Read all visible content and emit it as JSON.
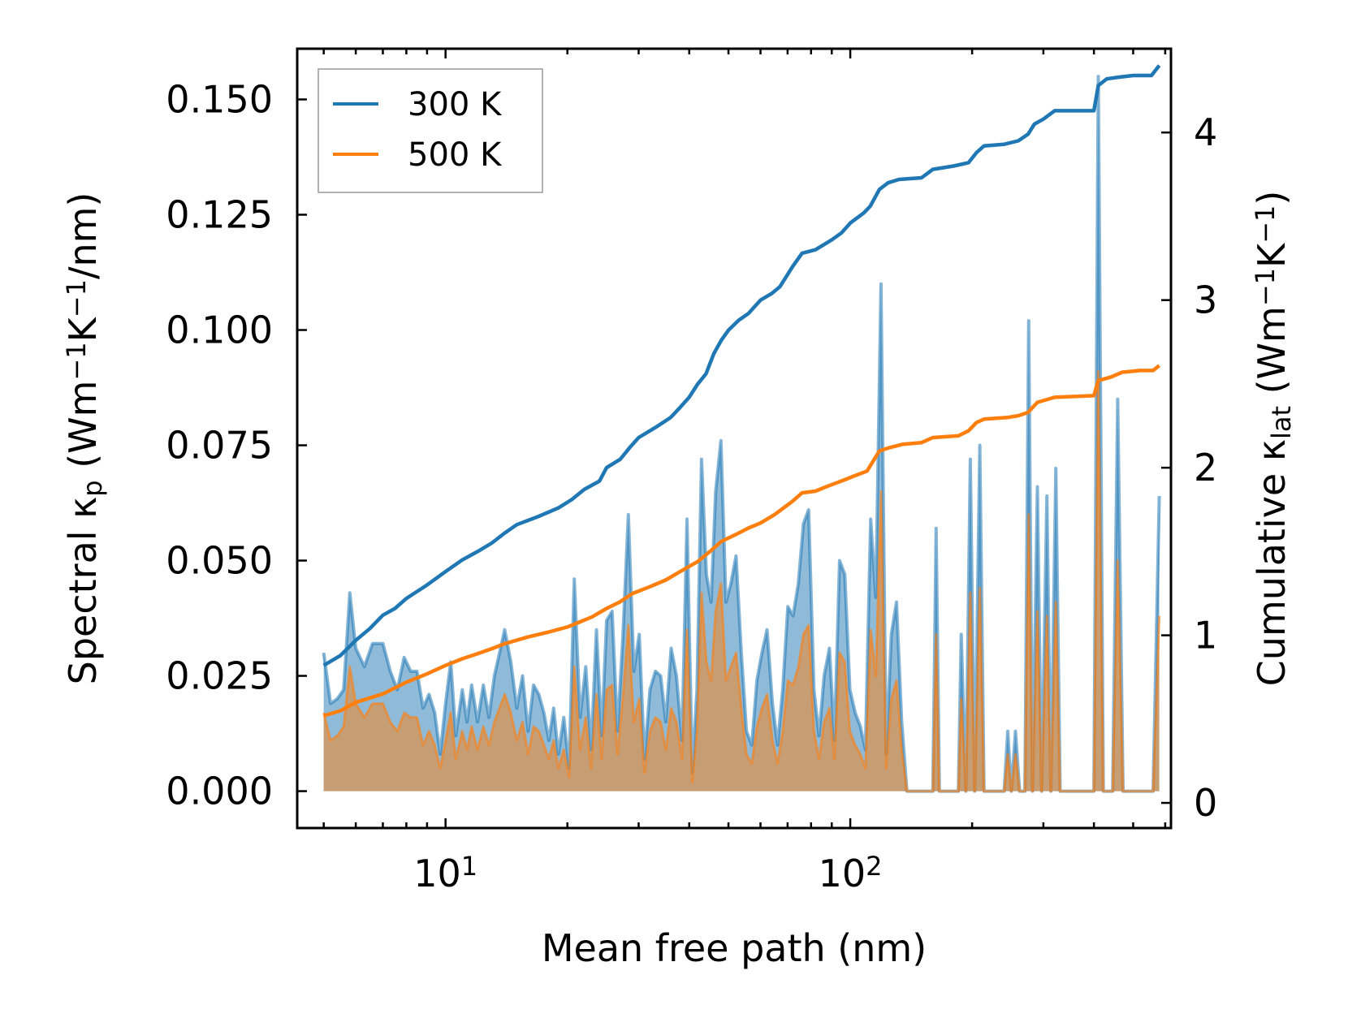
{
  "chart_data": {
    "type": "line",
    "xscale": "log",
    "xlabel": "Mean free path (nm)",
    "xlim": [
      4.3,
      620
    ],
    "xticks": [
      {
        "value": 10,
        "base": "10",
        "exp": "1"
      },
      {
        "value": 100,
        "base": "10",
        "exp": "2"
      }
    ],
    "ylabel_left": {
      "prefix": "Spectral κ",
      "sub": "p",
      "unit_pre": " (Wm",
      "sup1": "−1",
      "unit_mid": "K",
      "sup2": "−1",
      "unit_post": "/nm)"
    },
    "ylim_left": [
      -0.008,
      0.161
    ],
    "yticks_left": [
      {
        "value": 0.0,
        "label": "0.000"
      },
      {
        "value": 0.025,
        "label": "0.025"
      },
      {
        "value": 0.05,
        "label": "0.050"
      },
      {
        "value": 0.075,
        "label": "0.075"
      },
      {
        "value": 0.1,
        "label": "0.100"
      },
      {
        "value": 0.125,
        "label": "0.125"
      },
      {
        "value": 0.15,
        "label": "0.150"
      }
    ],
    "ylabel_right": {
      "prefix": "Cumulative κ",
      "sub": "lat",
      "unit_pre": " (Wm",
      "sup1": "−1",
      "unit_mid": "K",
      "sup2": "−1",
      "unit_post": ")"
    },
    "ylim_right": [
      -0.15,
      4.5
    ],
    "yticks_right": [
      {
        "value": 0,
        "label": "0"
      },
      {
        "value": 1,
        "label": "1"
      },
      {
        "value": 2,
        "label": "2"
      },
      {
        "value": 3,
        "label": "3"
      },
      {
        "value": 4,
        "label": "4"
      }
    ],
    "legend": {
      "position": "top-left",
      "entries": [
        "300 K",
        "500 K"
      ]
    },
    "series_colors": {
      "300 K": "#1f77b4",
      "500 K": "#ff7f0e",
      "fill_300": "#1f77b4",
      "fill_500": "#ff7f0e"
    },
    "spectral_300K": [
      [
        5.0,
        0.03
      ],
      [
        5.2,
        0.019
      ],
      [
        5.4,
        0.02
      ],
      [
        5.6,
        0.022
      ],
      [
        5.8,
        0.043
      ],
      [
        6.0,
        0.031
      ],
      [
        6.3,
        0.027
      ],
      [
        6.6,
        0.032
      ],
      [
        7.0,
        0.032
      ],
      [
        7.3,
        0.026
      ],
      [
        7.6,
        0.022
      ],
      [
        7.9,
        0.029
      ],
      [
        8.2,
        0.026
      ],
      [
        8.5,
        0.026
      ],
      [
        8.8,
        0.018
      ],
      [
        9.1,
        0.021
      ],
      [
        9.4,
        0.017
      ],
      [
        9.7,
        0.008
      ],
      [
        10.0,
        0.019
      ],
      [
        10.3,
        0.028
      ],
      [
        10.6,
        0.012
      ],
      [
        11.0,
        0.022
      ],
      [
        11.3,
        0.015
      ],
      [
        11.6,
        0.023
      ],
      [
        12.0,
        0.015
      ],
      [
        12.4,
        0.023
      ],
      [
        12.8,
        0.016
      ],
      [
        13.2,
        0.025
      ],
      [
        13.6,
        0.03
      ],
      [
        14.0,
        0.035
      ],
      [
        14.5,
        0.028
      ],
      [
        15.0,
        0.018
      ],
      [
        15.5,
        0.025
      ],
      [
        16.0,
        0.013
      ],
      [
        16.5,
        0.023
      ],
      [
        17.0,
        0.021
      ],
      [
        17.5,
        0.017
      ],
      [
        18.0,
        0.011
      ],
      [
        18.5,
        0.018
      ],
      [
        19.0,
        0.008
      ],
      [
        19.6,
        0.016
      ],
      [
        20.2,
        0.005
      ],
      [
        20.8,
        0.046
      ],
      [
        21.5,
        0.016
      ],
      [
        22.2,
        0.027
      ],
      [
        22.9,
        0.009
      ],
      [
        23.6,
        0.035
      ],
      [
        24.3,
        0.012
      ],
      [
        25.0,
        0.037
      ],
      [
        25.8,
        0.039
      ],
      [
        26.6,
        0.013
      ],
      [
        27.4,
        0.033
      ],
      [
        28.3,
        0.06
      ],
      [
        29.2,
        0.026
      ],
      [
        30.1,
        0.034
      ],
      [
        31.0,
        0.007
      ],
      [
        32.0,
        0.022
      ],
      [
        33.0,
        0.026
      ],
      [
        34.0,
        0.025
      ],
      [
        35.0,
        0.015
      ],
      [
        36.1,
        0.031
      ],
      [
        37.2,
        0.025
      ],
      [
        38.4,
        0.011
      ],
      [
        39.5,
        0.059
      ],
      [
        40.7,
        0.004
      ],
      [
        41.8,
        0.022
      ],
      [
        42.9,
        0.072
      ],
      [
        44.1,
        0.047
      ],
      [
        45.3,
        0.041
      ],
      [
        46.5,
        0.065
      ],
      [
        47.9,
        0.076
      ],
      [
        49.3,
        0.041
      ],
      [
        50.7,
        0.045
      ],
      [
        52.2,
        0.051
      ],
      [
        53.8,
        0.03
      ],
      [
        55.4,
        0.013
      ],
      [
        57.1,
        0.01
      ],
      [
        58.8,
        0.024
      ],
      [
        60.5,
        0.03
      ],
      [
        62.3,
        0.035
      ],
      [
        64.2,
        0.019
      ],
      [
        66.1,
        0.01
      ],
      [
        68.1,
        0.022
      ],
      [
        70.1,
        0.04
      ],
      [
        72.2,
        0.038
      ],
      [
        74.4,
        0.045
      ],
      [
        76.6,
        0.058
      ],
      [
        78.9,
        0.061
      ],
      [
        81.3,
        0.022
      ],
      [
        83.7,
        0.012
      ],
      [
        86.2,
        0.025
      ],
      [
        88.8,
        0.031
      ],
      [
        91.4,
        0.011
      ],
      [
        94.1,
        0.05
      ],
      [
        96.9,
        0.047
      ],
      [
        99.8,
        0.022
      ],
      [
        102.8,
        0.017
      ],
      [
        105.9,
        0.014
      ],
      [
        109.0,
        0.009
      ],
      [
        112.3,
        0.059
      ],
      [
        115.6,
        0.042
      ],
      [
        119.1,
        0.11
      ],
      [
        122.6,
        0.008
      ],
      [
        126.3,
        0.034
      ],
      [
        130.1,
        0.041
      ],
      [
        134.0,
        0.015
      ],
      [
        138.0,
        0.0
      ],
      [
        160.0,
        0.0
      ],
      [
        163.0,
        0.057
      ],
      [
        166.0,
        0.0
      ],
      [
        185.0,
        0.0
      ],
      [
        188.0,
        0.034
      ],
      [
        193.0,
        0.0
      ],
      [
        198.0,
        0.072
      ],
      [
        203.0,
        0.0
      ],
      [
        209.0,
        0.075
      ],
      [
        214.0,
        0.0
      ],
      [
        240.0,
        0.0
      ],
      [
        245.0,
        0.013
      ],
      [
        250.0,
        0.0
      ],
      [
        256.0,
        0.013
      ],
      [
        262.0,
        0.0
      ],
      [
        270.0,
        0.0
      ],
      [
        276.0,
        0.102
      ],
      [
        282.0,
        0.0
      ],
      [
        290.0,
        0.066
      ],
      [
        297.0,
        0.0
      ],
      [
        306.0,
        0.064
      ],
      [
        313.0,
        0.0
      ],
      [
        322.0,
        0.07
      ],
      [
        330.0,
        0.0
      ],
      [
        400.0,
        0.0
      ],
      [
        410.0,
        0.155
      ],
      [
        422.0,
        0.0
      ],
      [
        445.0,
        0.0
      ],
      [
        458.0,
        0.085
      ],
      [
        472.0,
        0.0
      ],
      [
        560.0,
        0.0
      ],
      [
        580.0,
        0.064
      ]
    ],
    "spectral_500K": [
      [
        5.0,
        0.017
      ],
      [
        5.2,
        0.011
      ],
      [
        5.4,
        0.012
      ],
      [
        5.6,
        0.014
      ],
      [
        5.8,
        0.027
      ],
      [
        6.0,
        0.019
      ],
      [
        6.3,
        0.016
      ],
      [
        6.6,
        0.019
      ],
      [
        7.0,
        0.019
      ],
      [
        7.3,
        0.015
      ],
      [
        7.6,
        0.013
      ],
      [
        7.9,
        0.017
      ],
      [
        8.2,
        0.016
      ],
      [
        8.5,
        0.016
      ],
      [
        8.8,
        0.01
      ],
      [
        9.1,
        0.013
      ],
      [
        9.4,
        0.01
      ],
      [
        9.7,
        0.005
      ],
      [
        10.0,
        0.011
      ],
      [
        10.3,
        0.017
      ],
      [
        10.6,
        0.007
      ],
      [
        11.0,
        0.013
      ],
      [
        11.3,
        0.009
      ],
      [
        11.6,
        0.014
      ],
      [
        12.0,
        0.009
      ],
      [
        12.4,
        0.014
      ],
      [
        12.8,
        0.01
      ],
      [
        13.2,
        0.015
      ],
      [
        13.6,
        0.018
      ],
      [
        14.0,
        0.021
      ],
      [
        14.5,
        0.017
      ],
      [
        15.0,
        0.011
      ],
      [
        15.5,
        0.015
      ],
      [
        16.0,
        0.008
      ],
      [
        16.5,
        0.014
      ],
      [
        17.0,
        0.013
      ],
      [
        17.5,
        0.01
      ],
      [
        18.0,
        0.007
      ],
      [
        18.5,
        0.011
      ],
      [
        19.0,
        0.005
      ],
      [
        19.6,
        0.009
      ],
      [
        20.2,
        0.003
      ],
      [
        20.8,
        0.027
      ],
      [
        21.5,
        0.009
      ],
      [
        22.2,
        0.016
      ],
      [
        22.9,
        0.005
      ],
      [
        23.6,
        0.021
      ],
      [
        24.3,
        0.007
      ],
      [
        25.0,
        0.022
      ],
      [
        25.8,
        0.023
      ],
      [
        26.6,
        0.008
      ],
      [
        27.4,
        0.02
      ],
      [
        28.3,
        0.036
      ],
      [
        29.2,
        0.015
      ],
      [
        30.1,
        0.02
      ],
      [
        31.0,
        0.004
      ],
      [
        32.0,
        0.013
      ],
      [
        33.0,
        0.016
      ],
      [
        34.0,
        0.015
      ],
      [
        35.0,
        0.009
      ],
      [
        36.1,
        0.018
      ],
      [
        37.2,
        0.015
      ],
      [
        38.4,
        0.007
      ],
      [
        39.5,
        0.035
      ],
      [
        40.7,
        0.002
      ],
      [
        41.8,
        0.013
      ],
      [
        42.9,
        0.043
      ],
      [
        44.1,
        0.028
      ],
      [
        45.3,
        0.024
      ],
      [
        46.5,
        0.039
      ],
      [
        47.9,
        0.045
      ],
      [
        49.3,
        0.024
      ],
      [
        50.7,
        0.027
      ],
      [
        52.2,
        0.03
      ],
      [
        53.8,
        0.018
      ],
      [
        55.4,
        0.008
      ],
      [
        57.1,
        0.006
      ],
      [
        58.8,
        0.014
      ],
      [
        60.5,
        0.018
      ],
      [
        62.3,
        0.021
      ],
      [
        64.2,
        0.011
      ],
      [
        66.1,
        0.006
      ],
      [
        68.1,
        0.013
      ],
      [
        70.1,
        0.024
      ],
      [
        72.2,
        0.023
      ],
      [
        74.4,
        0.027
      ],
      [
        76.6,
        0.034
      ],
      [
        78.9,
        0.036
      ],
      [
        81.3,
        0.013
      ],
      [
        83.7,
        0.007
      ],
      [
        86.2,
        0.015
      ],
      [
        88.8,
        0.018
      ],
      [
        91.4,
        0.007
      ],
      [
        94.1,
        0.03
      ],
      [
        96.9,
        0.028
      ],
      [
        99.8,
        0.013
      ],
      [
        102.8,
        0.01
      ],
      [
        105.9,
        0.008
      ],
      [
        109.0,
        0.005
      ],
      [
        112.3,
        0.035
      ],
      [
        115.6,
        0.025
      ],
      [
        119.1,
        0.065
      ],
      [
        122.6,
        0.005
      ],
      [
        126.3,
        0.02
      ],
      [
        130.1,
        0.024
      ],
      [
        134.0,
        0.009
      ],
      [
        138.0,
        0.0
      ],
      [
        160.0,
        0.0
      ],
      [
        163.0,
        0.034
      ],
      [
        166.0,
        0.0
      ],
      [
        185.0,
        0.0
      ],
      [
        188.0,
        0.02
      ],
      [
        193.0,
        0.0
      ],
      [
        198.0,
        0.043
      ],
      [
        203.0,
        0.0
      ],
      [
        209.0,
        0.044
      ],
      [
        214.0,
        0.0
      ],
      [
        240.0,
        0.0
      ],
      [
        245.0,
        0.008
      ],
      [
        250.0,
        0.0
      ],
      [
        256.0,
        0.008
      ],
      [
        262.0,
        0.0
      ],
      [
        270.0,
        0.0
      ],
      [
        276.0,
        0.06
      ],
      [
        282.0,
        0.0
      ],
      [
        290.0,
        0.039
      ],
      [
        297.0,
        0.0
      ],
      [
        306.0,
        0.038
      ],
      [
        313.0,
        0.0
      ],
      [
        322.0,
        0.041
      ],
      [
        330.0,
        0.0
      ],
      [
        400.0,
        0.0
      ],
      [
        410.0,
        0.091
      ],
      [
        422.0,
        0.0
      ],
      [
        445.0,
        0.0
      ],
      [
        458.0,
        0.05
      ],
      [
        472.0,
        0.0
      ],
      [
        560.0,
        0.0
      ],
      [
        580.0,
        0.038
      ]
    ],
    "cumulative_300K": [
      [
        5.0,
        0.82
      ],
      [
        5.5,
        0.88
      ],
      [
        6.0,
        0.97
      ],
      [
        6.5,
        1.04
      ],
      [
        7.0,
        1.12
      ],
      [
        7.5,
        1.16
      ],
      [
        8.0,
        1.22
      ],
      [
        9.0,
        1.3
      ],
      [
        10.0,
        1.38
      ],
      [
        11.0,
        1.45
      ],
      [
        12.0,
        1.5
      ],
      [
        13.0,
        1.55
      ],
      [
        14.0,
        1.61
      ],
      [
        15.0,
        1.66
      ],
      [
        17.0,
        1.71
      ],
      [
        19.0,
        1.76
      ],
      [
        20.5,
        1.81
      ],
      [
        22.0,
        1.87
      ],
      [
        24.0,
        1.92
      ],
      [
        25.0,
        2.0
      ],
      [
        27.0,
        2.05
      ],
      [
        28.5,
        2.12
      ],
      [
        30.0,
        2.18
      ],
      [
        33.0,
        2.24
      ],
      [
        36.0,
        2.3
      ],
      [
        38.0,
        2.36
      ],
      [
        40.0,
        2.42
      ],
      [
        42.0,
        2.5
      ],
      [
        44.0,
        2.56
      ],
      [
        46.0,
        2.68
      ],
      [
        48.0,
        2.76
      ],
      [
        50.0,
        2.82
      ],
      [
        53.0,
        2.88
      ],
      [
        56.0,
        2.92
      ],
      [
        60.0,
        3.0
      ],
      [
        64.0,
        3.04
      ],
      [
        67.0,
        3.08
      ],
      [
        72.0,
        3.2
      ],
      [
        76.0,
        3.28
      ],
      [
        82.0,
        3.3
      ],
      [
        90.0,
        3.36
      ],
      [
        95.0,
        3.4
      ],
      [
        100.0,
        3.46
      ],
      [
        108.0,
        3.52
      ],
      [
        112.0,
        3.56
      ],
      [
        118.0,
        3.66
      ],
      [
        124.0,
        3.7
      ],
      [
        132.0,
        3.72
      ],
      [
        150.0,
        3.73
      ],
      [
        160.0,
        3.78
      ],
      [
        180.0,
        3.8
      ],
      [
        196.0,
        3.82
      ],
      [
        205.0,
        3.88
      ],
      [
        214.0,
        3.92
      ],
      [
        240.0,
        3.93
      ],
      [
        260.0,
        3.95
      ],
      [
        275.0,
        3.99
      ],
      [
        285.0,
        4.05
      ],
      [
        300.0,
        4.08
      ],
      [
        320.0,
        4.13
      ],
      [
        400.0,
        4.13
      ],
      [
        410.0,
        4.28
      ],
      [
        430.0,
        4.32
      ],
      [
        460.0,
        4.33
      ],
      [
        500.0,
        4.34
      ],
      [
        555.0,
        4.34
      ],
      [
        580.0,
        4.4
      ]
    ],
    "cumulative_500K": [
      [
        5.0,
        0.52
      ],
      [
        5.5,
        0.55
      ],
      [
        6.0,
        0.6
      ],
      [
        7.0,
        0.65
      ],
      [
        8.0,
        0.72
      ],
      [
        9.0,
        0.77
      ],
      [
        10.0,
        0.82
      ],
      [
        11.0,
        0.86
      ],
      [
        12.0,
        0.89
      ],
      [
        13.0,
        0.92
      ],
      [
        14.0,
        0.95
      ],
      [
        16.0,
        0.99
      ],
      [
        18.0,
        1.02
      ],
      [
        20.0,
        1.05
      ],
      [
        21.0,
        1.07
      ],
      [
        23.0,
        1.11
      ],
      [
        25.0,
        1.16
      ],
      [
        27.0,
        1.2
      ],
      [
        29.0,
        1.25
      ],
      [
        32.0,
        1.29
      ],
      [
        35.0,
        1.33
      ],
      [
        38.0,
        1.38
      ],
      [
        42.0,
        1.44
      ],
      [
        45.0,
        1.5
      ],
      [
        48.0,
        1.56
      ],
      [
        52.0,
        1.6
      ],
      [
        56.0,
        1.64
      ],
      [
        60.0,
        1.67
      ],
      [
        65.0,
        1.72
      ],
      [
        72.0,
        1.8
      ],
      [
        76.0,
        1.85
      ],
      [
        82.0,
        1.86
      ],
      [
        88.0,
        1.89
      ],
      [
        95.0,
        1.92
      ],
      [
        102.0,
        1.95
      ],
      [
        110.0,
        1.98
      ],
      [
        118.0,
        2.1
      ],
      [
        125.0,
        2.12
      ],
      [
        135.0,
        2.14
      ],
      [
        150.0,
        2.15
      ],
      [
        160.0,
        2.18
      ],
      [
        185.0,
        2.19
      ],
      [
        196.0,
        2.22
      ],
      [
        205.0,
        2.27
      ],
      [
        214.0,
        2.29
      ],
      [
        245.0,
        2.3
      ],
      [
        260.0,
        2.31
      ],
      [
        275.0,
        2.33
      ],
      [
        290.0,
        2.39
      ],
      [
        320.0,
        2.42
      ],
      [
        400.0,
        2.43
      ],
      [
        410.0,
        2.52
      ],
      [
        440.0,
        2.54
      ],
      [
        470.0,
        2.57
      ],
      [
        520.0,
        2.58
      ],
      [
        560.0,
        2.58
      ],
      [
        580.0,
        2.61
      ]
    ]
  }
}
